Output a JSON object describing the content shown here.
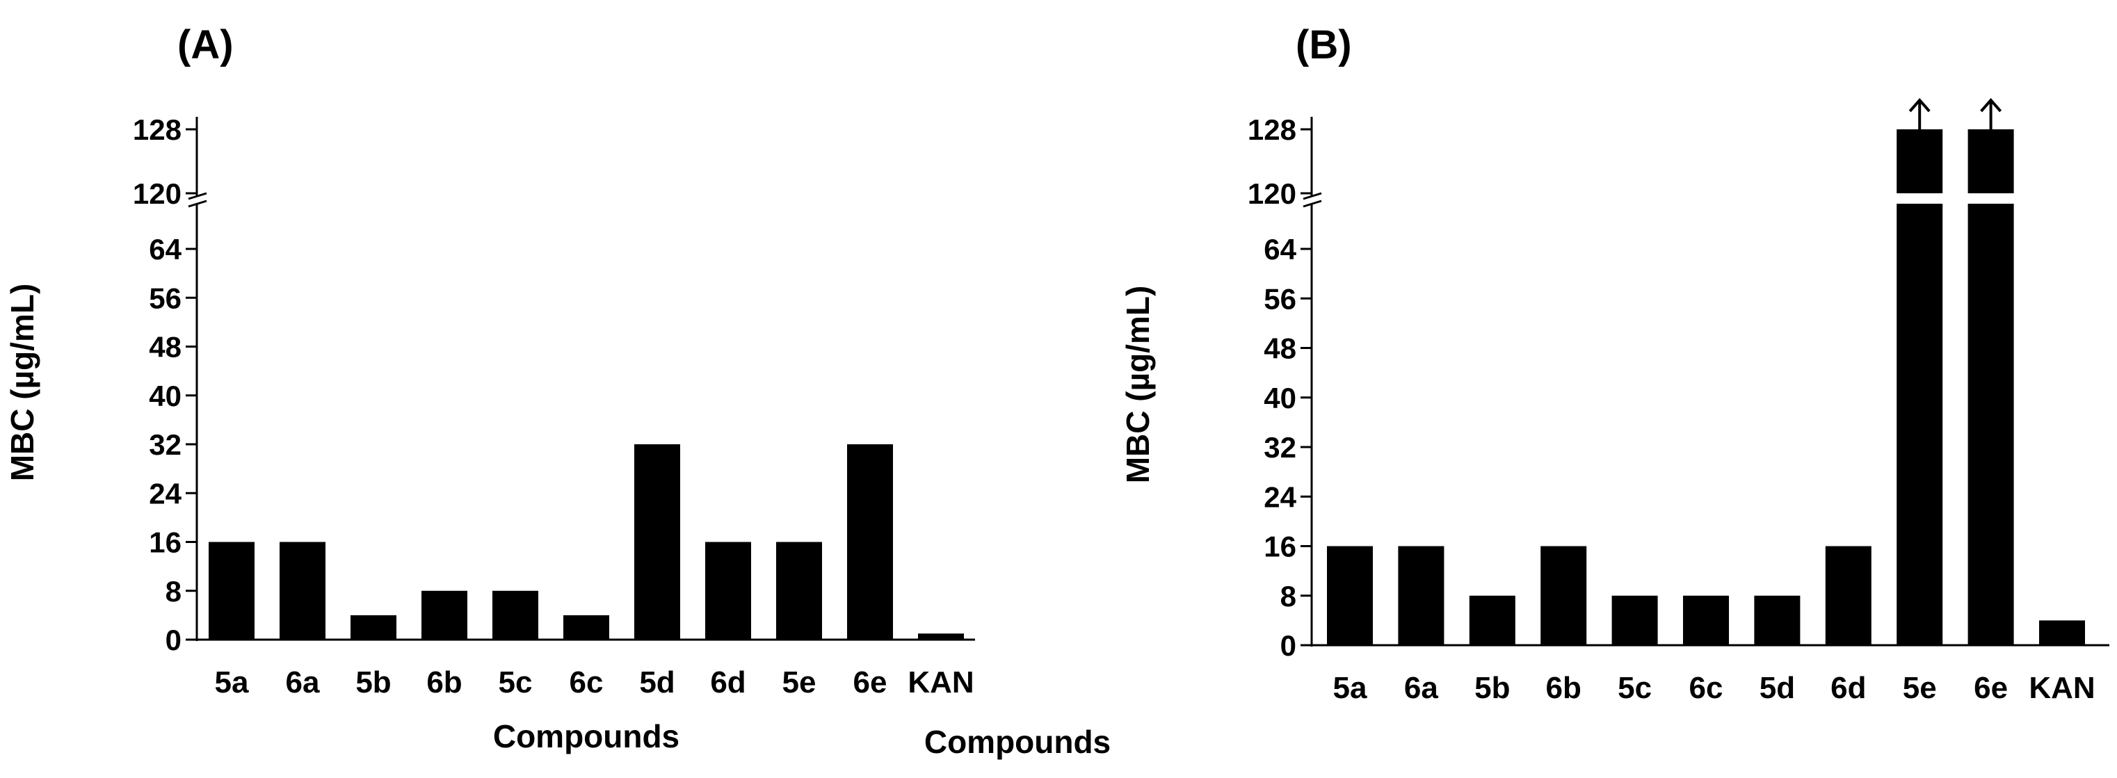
{
  "chart_data": [
    {
      "type": "bar",
      "panel_label": "(A)",
      "title": "",
      "xlabel": "Compounds",
      "ylabel": "MBC (µg/mL)",
      "categories": [
        "5a",
        "6a",
        "5b",
        "6b",
        "5c",
        "6c",
        "5d",
        "6d",
        "5e",
        "6e",
        "KAN"
      ],
      "values": [
        16,
        16,
        4,
        8,
        8,
        4,
        32,
        16,
        16,
        32,
        1
      ],
      "y_ticks": [
        0,
        8,
        16,
        24,
        32,
        40,
        48,
        56,
        64,
        120,
        128
      ],
      "y_tick_labels": [
        "0",
        "8",
        "16",
        "24",
        "32",
        "40",
        "48",
        "56",
        "64",
        "120",
        "128"
      ],
      "y_axis_break": [
        64,
        120
      ],
      "ylim": [
        0,
        128
      ],
      "exceeds_max": [
        false,
        false,
        false,
        false,
        false,
        false,
        false,
        false,
        false,
        false,
        false
      ],
      "bar_color": "#000000"
    },
    {
      "type": "bar",
      "panel_label": "(B)",
      "title": "",
      "xlabel": "Compounds",
      "ylabel": "MBC (µg/mL)",
      "categories": [
        "5a",
        "6a",
        "5b",
        "6b",
        "5c",
        "6c",
        "5d",
        "6d",
        "5e",
        "6e",
        "KAN"
      ],
      "values": [
        16,
        16,
        8,
        16,
        8,
        8,
        8,
        16,
        128,
        128,
        4
      ],
      "y_ticks": [
        0,
        8,
        16,
        24,
        32,
        40,
        48,
        56,
        64,
        120,
        128
      ],
      "y_tick_labels": [
        "0",
        "8",
        "16",
        "24",
        "32",
        "40",
        "48",
        "56",
        "64",
        "120",
        "128"
      ],
      "y_axis_break": [
        64,
        120
      ],
      "ylim": [
        0,
        128
      ],
      "exceeds_max": [
        false,
        false,
        false,
        false,
        false,
        false,
        false,
        false,
        true,
        true,
        false
      ],
      "bar_color": "#000000"
    }
  ]
}
